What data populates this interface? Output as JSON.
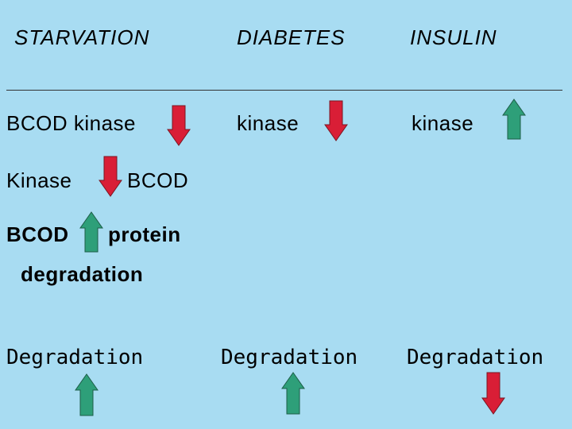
{
  "headers": {
    "starvation": "STARVATION",
    "diabetes": "DIABETES",
    "insulin": "INSULIN"
  },
  "rows": {
    "row1": {
      "starvation_label": "BCOD kinase",
      "diabetes_label": "kinase",
      "insulin_label": "kinase"
    },
    "row2": {
      "left_label": "Kinase",
      "right_label": "BCOD"
    },
    "row3": {
      "left_label": "BCOD",
      "right_label": "protein",
      "continuation": "degradation"
    },
    "row4": {
      "starvation_label": "Degradation",
      "diabetes_label": "Degradation",
      "insulin_label": "Degradation"
    }
  },
  "arrows": {
    "row1_starvation": "down",
    "row1_diabetes": "down",
    "row1_insulin": "up",
    "row2_kinase": "down",
    "row3_bcod": "up",
    "row4_starvation": "up",
    "row4_diabetes": "up",
    "row4_insulin": "down"
  },
  "colors": {
    "background": "#a8dcf2",
    "down_arrow": "#d91e36",
    "up_arrow": "#2e9f79"
  }
}
